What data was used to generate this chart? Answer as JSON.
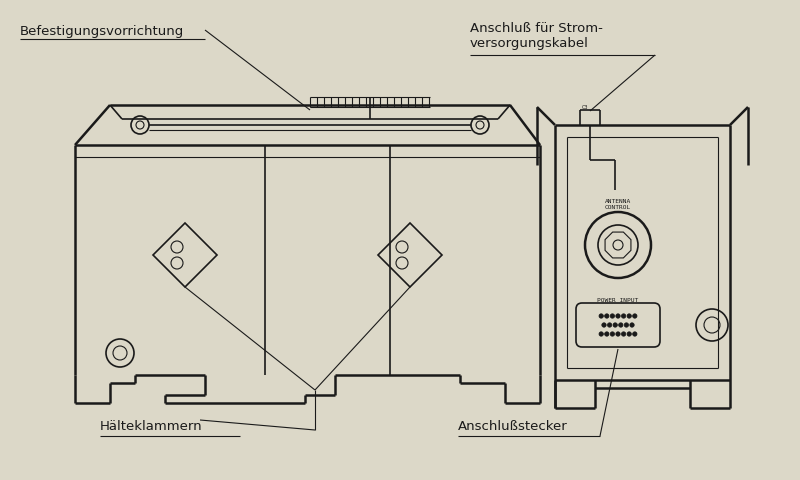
{
  "bg_color": "#dcd8c8",
  "line_color": "#1a1a1a",
  "labels": {
    "befestigung": "Befestigungsvorrichtung",
    "anschluss_strom": "Anschluß für Strom-\nversorgungskabel",
    "halteklammern": "Hälteklammern",
    "anschlussstecker": "Anschlußstecker",
    "antenna_control": "ANTENNA\nCONTROL",
    "power_input": "POWER INPUT"
  },
  "figsize": [
    8.0,
    4.8
  ],
  "dpi": 100
}
